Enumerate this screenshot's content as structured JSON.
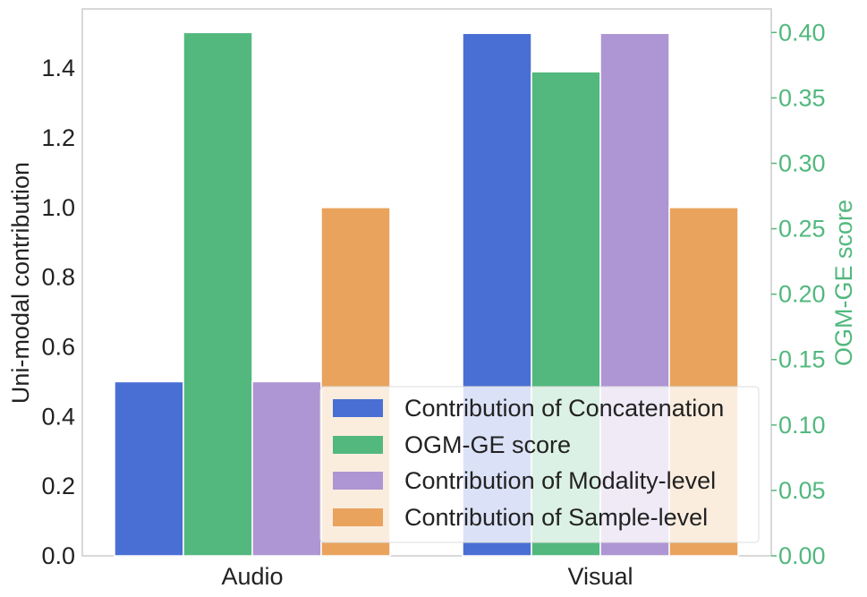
{
  "chart_data": {
    "type": "bar",
    "categories": [
      "Audio",
      "Visual"
    ],
    "ylabel": "Uni-modal contribution",
    "ylim": [
      0,
      1.57
    ],
    "yticks": [
      "0.0",
      "0.2",
      "0.4",
      "0.6",
      "0.8",
      "1.0",
      "1.2",
      "1.4"
    ],
    "y2label": "OGM-GE score",
    "y2lim": [
      0,
      0.418
    ],
    "y2ticks": [
      "0.00",
      "0.05",
      "0.10",
      "0.15",
      "0.20",
      "0.25",
      "0.30",
      "0.35",
      "0.40"
    ],
    "grid": false,
    "legend_position": "lower-right",
    "series": [
      {
        "name": "Contribution of Concatenation",
        "axis": "left",
        "color": "#4a6fd4",
        "values": [
          0.5,
          1.5
        ]
      },
      {
        "name": "OGM-GE score",
        "axis": "right",
        "color": "#52b87e",
        "values": [
          0.4,
          0.37
        ]
      },
      {
        "name": "Contribution of Modality-level",
        "axis": "left",
        "color": "#ae95d3",
        "values": [
          0.5,
          1.5
        ]
      },
      {
        "name": "Contribution of Sample-level",
        "axis": "left",
        "color": "#e9a35d",
        "values": [
          1.0,
          1.0
        ]
      }
    ],
    "right_axis_color": "#52b87e"
  }
}
